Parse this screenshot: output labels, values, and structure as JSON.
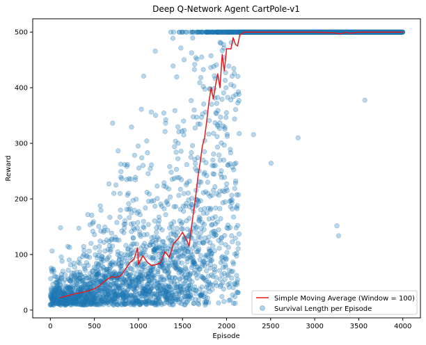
{
  "chart_data": {
    "type": "scatter",
    "title": "Deep Q-Network Agent CartPole-v1",
    "xlabel": "Episode",
    "ylabel": "Reward",
    "xlim": [
      -200,
      4200
    ],
    "ylim": [
      -14,
      524
    ],
    "xticks": [
      0,
      500,
      1000,
      1500,
      2000,
      2500,
      3000,
      3500,
      4000
    ],
    "yticks": [
      0,
      100,
      200,
      300,
      400,
      500
    ],
    "grid": false,
    "legend_position": "lower-right",
    "series": [
      {
        "name": "Simple Moving Average (Window = 100)",
        "kind": "line",
        "color": "#e41a1c",
        "x": [
          100,
          200,
          300,
          400,
          500,
          550,
          600,
          650,
          700,
          750,
          800,
          850,
          900,
          950,
          990,
          1000,
          1050,
          1100,
          1150,
          1200,
          1250,
          1300,
          1350,
          1400,
          1450,
          1500,
          1550,
          1575,
          1600,
          1625,
          1650,
          1675,
          1700,
          1725,
          1750,
          1775,
          1800,
          1825,
          1850,
          1875,
          1900,
          1925,
          1950,
          1975,
          2000,
          2025,
          2050,
          2075,
          2100,
          2125,
          2150,
          2200,
          2400,
          2600,
          2800,
          3000,
          3200,
          3300,
          3350,
          3400,
          3500,
          3700,
          4000
        ],
        "y": [
          22,
          26,
          30,
          33,
          38,
          43,
          50,
          56,
          60,
          59,
          62,
          73,
          85,
          92,
          112,
          82,
          98,
          86,
          80,
          82,
          85,
          105,
          95,
          120,
          128,
          140,
          125,
          115,
          148,
          175,
          205,
          240,
          265,
          295,
          310,
          340,
          375,
          400,
          380,
          405,
          425,
          400,
          460,
          430,
          470,
          470,
          470,
          490,
          478,
          475,
          495,
          500,
          500,
          500,
          500,
          500,
          499,
          497,
          500,
          498,
          500,
          500,
          500
        ]
      },
      {
        "name": "Survival Length per Episode",
        "kind": "scatter",
        "color": "#1f77b4",
        "point_count": 4000
      }
    ]
  }
}
